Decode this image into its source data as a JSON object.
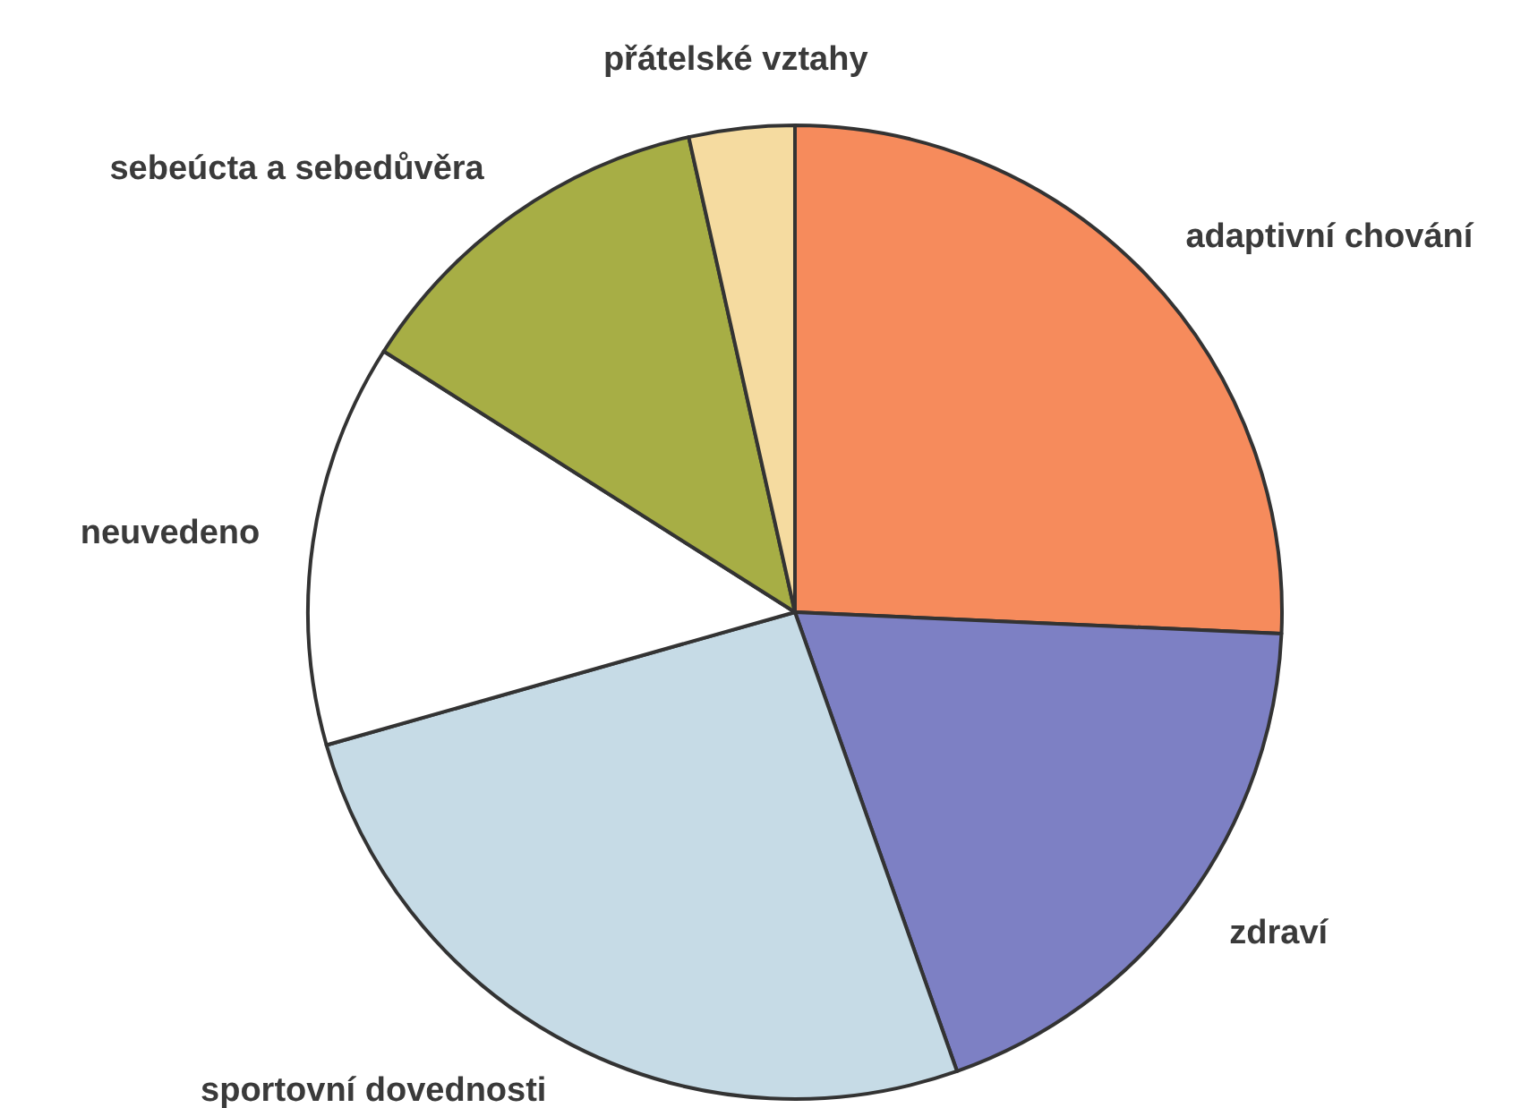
{
  "chart_data": {
    "type": "pie",
    "categories": [
      "adaptivní chování",
      "zdraví",
      "sportovní dovednosti",
      "neuvedeno",
      "sebeúcta a sebedůvěra",
      "přátelské vztahy"
    ],
    "values": [
      25.7,
      18.9,
      26.0,
      13.4,
      12.5,
      3.5
    ],
    "colors": [
      "#f68b5c",
      "#7d80c4",
      "#c6dbe6",
      "#ffffff",
      "#a7ae45",
      "#f5dba0"
    ]
  }
}
